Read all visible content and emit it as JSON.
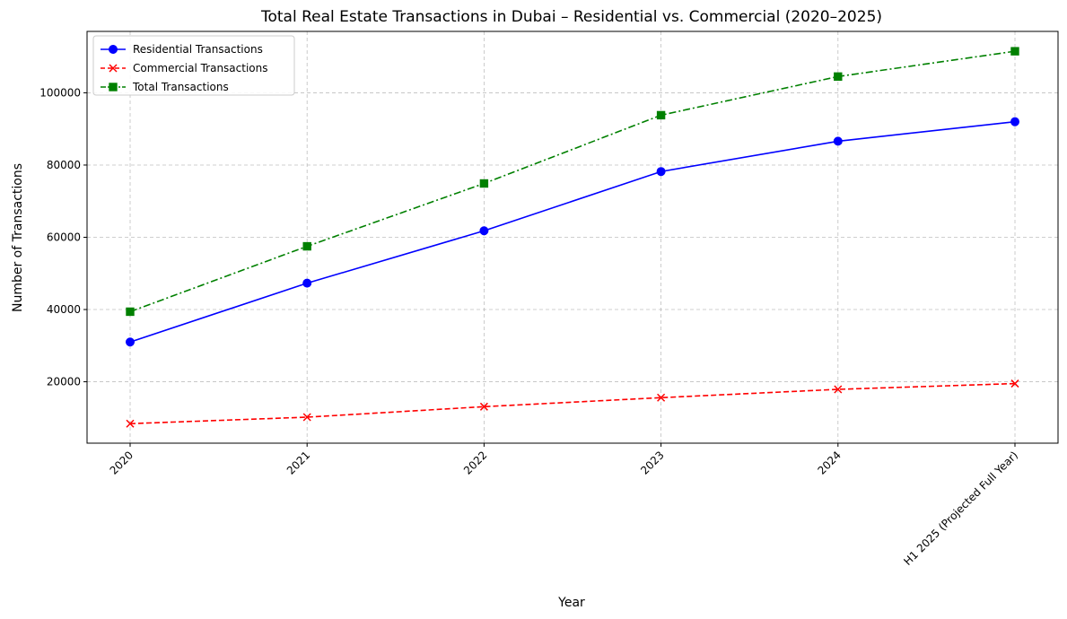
{
  "chart_data": {
    "type": "line",
    "title": "Total Real Estate Transactions in Dubai – Residential vs. Commercial (2020–2025)",
    "xlabel": "Year",
    "ylabel": "Number of Transactions",
    "categories": [
      "2020",
      "2021",
      "2022",
      "2023",
      "2024",
      "H1 2025 (Projected Full Year)"
    ],
    "ylim": [
      3000,
      117000
    ],
    "yticks": [
      20000,
      40000,
      60000,
      80000,
      100000
    ],
    "grid": true,
    "legend_position": "top-left",
    "series": [
      {
        "name": "Residential Transactions",
        "color": "#0000ff",
        "line_style": "solid",
        "marker": "circle",
        "values": [
          31000,
          47300,
          61800,
          78200,
          86600,
          92000
        ]
      },
      {
        "name": "Commercial Transactions",
        "color": "#ff0000",
        "line_style": "dashed",
        "marker": "x",
        "values": [
          8400,
          10200,
          13100,
          15600,
          17900,
          19500
        ]
      },
      {
        "name": "Total Transactions",
        "color": "#008000",
        "line_style": "dashdot",
        "marker": "square",
        "values": [
          39400,
          57500,
          74900,
          93800,
          104500,
          111500
        ]
      }
    ]
  }
}
